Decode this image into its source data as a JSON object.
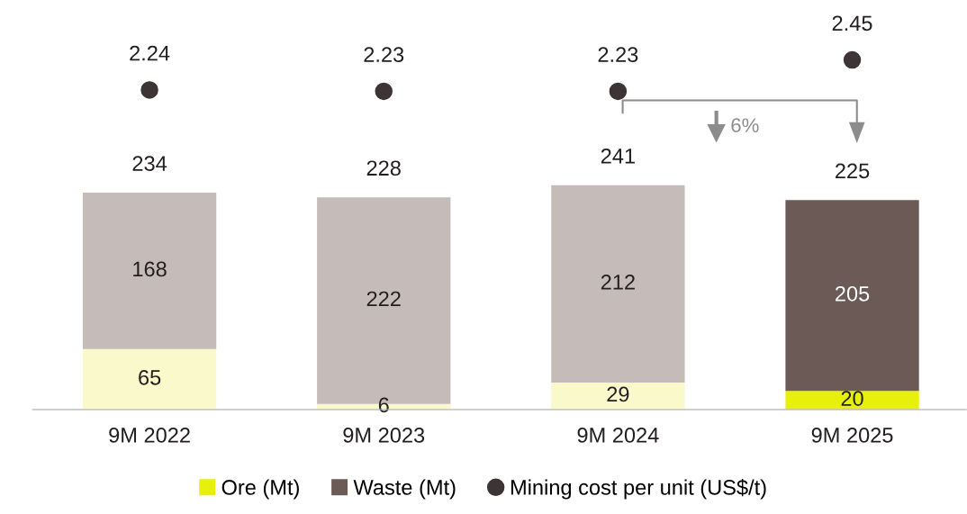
{
  "chart_data": {
    "type": "bar",
    "stacked": true,
    "categories": [
      "9M 2022",
      "9M 2023",
      "9M 2024",
      "9M 2025"
    ],
    "series": [
      {
        "name": "Ore (Mt)",
        "color": "#e6f00a",
        "colors": [
          "#f9f9cc",
          "#f9f9cc",
          "#f9f9cc",
          "#e6f00a"
        ],
        "values": [
          65,
          6,
          29,
          20
        ]
      },
      {
        "name": "Waste (Mt)",
        "color": "#6b5a55",
        "colors": [
          "#c5bcb9",
          "#c5bcb9",
          "#c5bcb9",
          "#6b5a55"
        ],
        "values": [
          168,
          222,
          212,
          205
        ]
      },
      {
        "name": "Mining cost per unit (US$/t)",
        "type": "scatter",
        "axis": "y2",
        "color": "#3d3435",
        "values": [
          2.24,
          2.23,
          2.23,
          2.45
        ]
      }
    ],
    "totals": [
      "234",
      "228",
      "241",
      "225"
    ],
    "data_labels": true,
    "ylim": [
      0,
      440
    ],
    "y2lim": [
      0,
      2.87
    ],
    "annotations": [
      "6%"
    ],
    "tick_labels": "x",
    "legend": "bottom",
    "marker": "circle",
    "grid": false
  }
}
